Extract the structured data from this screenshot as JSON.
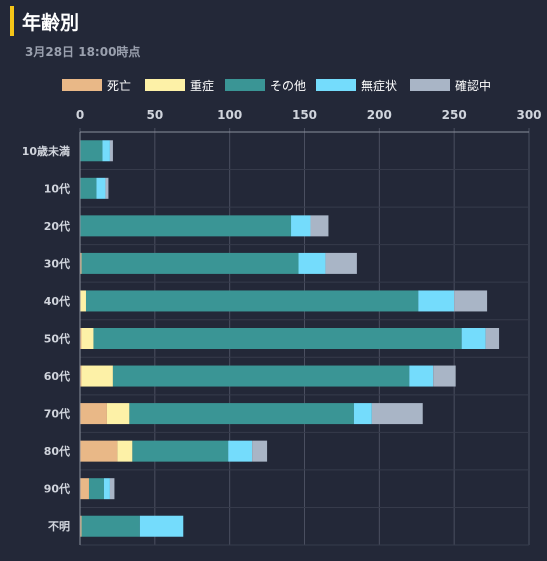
{
  "title": "年齢別",
  "subtitle": "3月28日 18:00時点",
  "chart_data": {
    "type": "bar",
    "orientation": "horizontal",
    "stacked": true,
    "categories": [
      "10歳未満",
      "10代",
      "20代",
      "30代",
      "40代",
      "50代",
      "60代",
      "70代",
      "80代",
      "90代",
      "不明"
    ],
    "series": [
      {
        "name": "死亡",
        "color": "#e9b887",
        "values": [
          0,
          0,
          0,
          1,
          0,
          1,
          1,
          18,
          25,
          6,
          1
        ]
      },
      {
        "name": "重症",
        "color": "#fdf1a7",
        "values": [
          0,
          0,
          0,
          0,
          4,
          8,
          21,
          15,
          10,
          0,
          0
        ]
      },
      {
        "name": "その他",
        "color": "#3a9595",
        "values": [
          15,
          11,
          141,
          145,
          222,
          246,
          198,
          150,
          64,
          10,
          39
        ]
      },
      {
        "name": "無症状",
        "color": "#74dcfc",
        "values": [
          5,
          6,
          13,
          18,
          24,
          16,
          16,
          12,
          16,
          4,
          29
        ]
      },
      {
        "name": "確認中",
        "color": "#a9b5c6",
        "values": [
          2,
          2,
          12,
          21,
          22,
          9,
          15,
          34,
          10,
          3,
          0
        ]
      }
    ],
    "xlim": [
      0,
      300
    ],
    "xticks": [
      "0",
      "50",
      "100",
      "150",
      "200",
      "250",
      "300"
    ],
    "legend_position": "top",
    "grid": true
  }
}
